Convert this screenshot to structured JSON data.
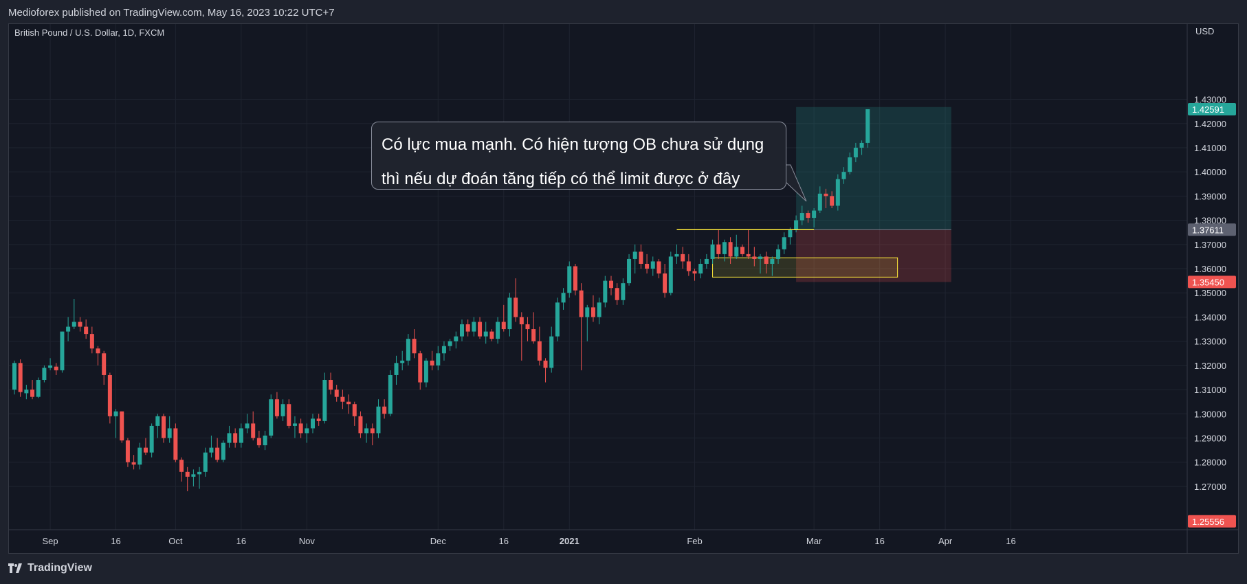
{
  "header": {
    "publish_info": "Medioforex published on TradingView.com, May 16, 2023 10:22 UTC+7"
  },
  "footer": {
    "brand": "TradingView"
  },
  "colors": {
    "up": "#26a69a",
    "down": "#ef5350",
    "background": "#131722",
    "grid": "#1f2430",
    "text": "#d1d4dc",
    "level_line": "#ffeb3b",
    "ob_box": "#ffeb3b",
    "profit_zone": "#26a69a",
    "loss_zone": "#ef5350"
  },
  "annotation": {
    "line1": "Có lực mua mạnh. Có hiện tượng OB chưa sử dụng",
    "line2": "thì nếu dự đoán tăng tiếp có thể limit được ở đây"
  },
  "chart_data": {
    "type": "candlestick",
    "title": "British Pound / U.S. Dollar, 1D, FXCM",
    "symbol": "GBPUSD",
    "timeframe": "1D",
    "exchange": "FXCM",
    "currency_label": "USD",
    "ylim": [
      1.2555,
      1.4435
    ],
    "y_ticks": [
      1.27,
      1.28,
      1.29,
      1.3,
      1.31,
      1.32,
      1.33,
      1.34,
      1.35,
      1.36,
      1.37,
      1.38,
      1.39,
      1.4,
      1.41,
      1.42,
      1.43
    ],
    "x_ticks": [
      {
        "label": "Sep",
        "bold": false
      },
      {
        "label": "16",
        "bold": false
      },
      {
        "label": "Oct",
        "bold": false
      },
      {
        "label": "16",
        "bold": false
      },
      {
        "label": "Nov",
        "bold": false
      },
      {
        "label": "Dec",
        "bold": false
      },
      {
        "label": "16",
        "bold": false
      },
      {
        "label": "2021",
        "bold": true
      },
      {
        "label": "Feb",
        "bold": false
      },
      {
        "label": "Mar",
        "bold": false
      },
      {
        "label": "16",
        "bold": false
      },
      {
        "label": "Apr",
        "bold": false
      },
      {
        "label": "16",
        "bold": false
      }
    ],
    "x_tick_bar_index": [
      6,
      17,
      27,
      38,
      49,
      71,
      82,
      93,
      114,
      134,
      145,
      156,
      167
    ],
    "price_labels": [
      {
        "value": "1.42591",
        "color": "#26a69a"
      },
      {
        "value": "1.37611",
        "color": "#5d6170"
      },
      {
        "value": "1.35450",
        "color": "#ef5350"
      },
      {
        "value": "1.25556",
        "color": "#ef5350"
      }
    ],
    "levels": {
      "current": 1.42591,
      "entry": 1.37611,
      "stop": 1.3545,
      "low": 1.25556
    },
    "position_tool": {
      "start_bar": 131,
      "end_bar": 157,
      "target": 1.4268,
      "entry": 1.37611,
      "stop": 1.3545
    },
    "entry_line": {
      "start_bar": 111,
      "end_bar": 134,
      "price": 1.37611
    },
    "order_block": {
      "start_bar": 117,
      "end_bar": 148,
      "top": 1.3645,
      "bottom": 1.3565
    },
    "candles": [
      [
        1.31,
        1.322,
        1.308,
        1.321
      ],
      [
        1.321,
        1.3225,
        1.307,
        1.309
      ],
      [
        1.3085,
        1.312,
        1.306,
        1.31
      ],
      [
        1.31,
        1.314,
        1.306,
        1.307
      ],
      [
        1.307,
        1.315,
        1.3065,
        1.314
      ],
      [
        1.314,
        1.32,
        1.313,
        1.319
      ],
      [
        1.319,
        1.323,
        1.318,
        1.32
      ],
      [
        1.3195,
        1.321,
        1.316,
        1.318
      ],
      [
        1.318,
        1.334,
        1.317,
        1.334
      ],
      [
        1.334,
        1.34,
        1.33,
        1.336
      ],
      [
        1.336,
        1.3475,
        1.335,
        1.338
      ],
      [
        1.338,
        1.34,
        1.334,
        1.336
      ],
      [
        1.336,
        1.339,
        1.331,
        1.333
      ],
      [
        1.333,
        1.336,
        1.325,
        1.327
      ],
      [
        1.327,
        1.328,
        1.32,
        1.325
      ],
      [
        1.325,
        1.326,
        1.312,
        1.316
      ],
      [
        1.316,
        1.317,
        1.296,
        1.299
      ],
      [
        1.299,
        1.302,
        1.29,
        1.301
      ],
      [
        1.301,
        1.301,
        1.288,
        1.289
      ],
      [
        1.289,
        1.29,
        1.278,
        1.28
      ],
      [
        1.28,
        1.283,
        1.277,
        1.279
      ],
      [
        1.279,
        1.288,
        1.277,
        1.286
      ],
      [
        1.286,
        1.29,
        1.283,
        1.284
      ],
      [
        1.284,
        1.296,
        1.282,
        1.295
      ],
      [
        1.295,
        1.3,
        1.29,
        1.299
      ],
      [
        1.299,
        1.3,
        1.288,
        1.29
      ],
      [
        1.29,
        1.299,
        1.288,
        1.294
      ],
      [
        1.294,
        1.296,
        1.28,
        1.281
      ],
      [
        1.281,
        1.282,
        1.272,
        1.276
      ],
      [
        1.276,
        1.278,
        1.268,
        1.274
      ],
      [
        1.274,
        1.277,
        1.27,
        1.275
      ],
      [
        1.275,
        1.278,
        1.269,
        1.276
      ],
      [
        1.276,
        1.286,
        1.274,
        1.284
      ],
      [
        1.284,
        1.291,
        1.282,
        1.286
      ],
      [
        1.286,
        1.29,
        1.28,
        1.281
      ],
      [
        1.281,
        1.289,
        1.28,
        1.288
      ],
      [
        1.288,
        1.295,
        1.286,
        1.292
      ],
      [
        1.292,
        1.294,
        1.286,
        1.288
      ],
      [
        1.288,
        1.296,
        1.286,
        1.294
      ],
      [
        1.294,
        1.3,
        1.292,
        1.296
      ],
      [
        1.296,
        1.301,
        1.289,
        1.29
      ],
      [
        1.29,
        1.293,
        1.286,
        1.287
      ],
      [
        1.287,
        1.293,
        1.285,
        1.291
      ],
      [
        1.291,
        1.308,
        1.29,
        1.306
      ],
      [
        1.306,
        1.309,
        1.298,
        1.299
      ],
      [
        1.299,
        1.306,
        1.297,
        1.304
      ],
      [
        1.304,
        1.306,
        1.294,
        1.295
      ],
      [
        1.295,
        1.299,
        1.29,
        1.296
      ],
      [
        1.296,
        1.298,
        1.29,
        1.292
      ],
      [
        1.292,
        1.296,
        1.288,
        1.294
      ],
      [
        1.294,
        1.3,
        1.292,
        1.298
      ],
      [
        1.298,
        1.3,
        1.295,
        1.297
      ],
      [
        1.297,
        1.317,
        1.296,
        1.314
      ],
      [
        1.314,
        1.317,
        1.308,
        1.31
      ],
      [
        1.31,
        1.312,
        1.305,
        1.307
      ],
      [
        1.307,
        1.31,
        1.302,
        1.305
      ],
      [
        1.305,
        1.308,
        1.3,
        1.304
      ],
      [
        1.304,
        1.305,
        1.295,
        1.299
      ],
      [
        1.299,
        1.301,
        1.29,
        1.292
      ],
      [
        1.292,
        1.296,
        1.288,
        1.294
      ],
      [
        1.294,
        1.296,
        1.287,
        1.292
      ],
      [
        1.292,
        1.306,
        1.29,
        1.303
      ],
      [
        1.303,
        1.306,
        1.298,
        1.3
      ],
      [
        1.3,
        1.318,
        1.299,
        1.316
      ],
      [
        1.316,
        1.324,
        1.312,
        1.321
      ],
      [
        1.321,
        1.326,
        1.318,
        1.322
      ],
      [
        1.322,
        1.333,
        1.32,
        1.331
      ],
      [
        1.331,
        1.335,
        1.323,
        1.325
      ],
      [
        1.325,
        1.326,
        1.31,
        1.313
      ],
      [
        1.313,
        1.323,
        1.311,
        1.322
      ],
      [
        1.322,
        1.326,
        1.318,
        1.32
      ],
      [
        1.32,
        1.328,
        1.318,
        1.325
      ],
      [
        1.325,
        1.33,
        1.322,
        1.328
      ],
      [
        1.328,
        1.331,
        1.326,
        1.33
      ],
      [
        1.33,
        1.334,
        1.327,
        1.332
      ],
      [
        1.332,
        1.339,
        1.33,
        1.337
      ],
      [
        1.337,
        1.339,
        1.332,
        1.334
      ],
      [
        1.334,
        1.34,
        1.332,
        1.338
      ],
      [
        1.338,
        1.34,
        1.331,
        1.332
      ],
      [
        1.332,
        1.338,
        1.329,
        1.334
      ],
      [
        1.334,
        1.335,
        1.33,
        1.331
      ],
      [
        1.331,
        1.34,
        1.329,
        1.338
      ],
      [
        1.338,
        1.345,
        1.334,
        1.335
      ],
      [
        1.335,
        1.35,
        1.332,
        1.348
      ],
      [
        1.348,
        1.356,
        1.338,
        1.34
      ],
      [
        1.34,
        1.342,
        1.322,
        1.337
      ],
      [
        1.337,
        1.34,
        1.33,
        1.335
      ],
      [
        1.335,
        1.342,
        1.329,
        1.33
      ],
      [
        1.33,
        1.336,
        1.32,
        1.322
      ],
      [
        1.322,
        1.323,
        1.313,
        1.319
      ],
      [
        1.319,
        1.336,
        1.317,
        1.332
      ],
      [
        1.332,
        1.348,
        1.33,
        1.346
      ],
      [
        1.346,
        1.352,
        1.343,
        1.35
      ],
      [
        1.35,
        1.363,
        1.348,
        1.361
      ],
      [
        1.361,
        1.362,
        1.349,
        1.351
      ],
      [
        1.351,
        1.354,
        1.318,
        1.34
      ],
      [
        1.34,
        1.345,
        1.33,
        1.344
      ],
      [
        1.344,
        1.349,
        1.338,
        1.34
      ],
      [
        1.34,
        1.348,
        1.337,
        1.346
      ],
      [
        1.346,
        1.357,
        1.344,
        1.355
      ],
      [
        1.355,
        1.357,
        1.349,
        1.352
      ],
      [
        1.352,
        1.354,
        1.345,
        1.347
      ],
      [
        1.347,
        1.356,
        1.345,
        1.354
      ],
      [
        1.354,
        1.366,
        1.353,
        1.364
      ],
      [
        1.364,
        1.37,
        1.358,
        1.367
      ],
      [
        1.367,
        1.37,
        1.36,
        1.362
      ],
      [
        1.362,
        1.366,
        1.358,
        1.36
      ],
      [
        1.36,
        1.365,
        1.357,
        1.363
      ],
      [
        1.363,
        1.364,
        1.356,
        1.358
      ],
      [
        1.358,
        1.362,
        1.348,
        1.35
      ],
      [
        1.35,
        1.367,
        1.349,
        1.365
      ],
      [
        1.365,
        1.37,
        1.362,
        1.366
      ],
      [
        1.366,
        1.369,
        1.36,
        1.363
      ],
      [
        1.363,
        1.366,
        1.357,
        1.359
      ],
      [
        1.359,
        1.36,
        1.355,
        1.358
      ],
      [
        1.358,
        1.364,
        1.356,
        1.362
      ],
      [
        1.362,
        1.366,
        1.36,
        1.364
      ],
      [
        1.364,
        1.372,
        1.362,
        1.37
      ],
      [
        1.37,
        1.376,
        1.364,
        1.366
      ],
      [
        1.366,
        1.372,
        1.363,
        1.371
      ],
      [
        1.371,
        1.373,
        1.362,
        1.365
      ],
      [
        1.365,
        1.374,
        1.364,
        1.369
      ],
      [
        1.369,
        1.37,
        1.365,
        1.366
      ],
      [
        1.366,
        1.376,
        1.364,
        1.365
      ],
      [
        1.365,
        1.369,
        1.361,
        1.364
      ],
      [
        1.364,
        1.366,
        1.358,
        1.365
      ],
      [
        1.365,
        1.367,
        1.358,
        1.362
      ],
      [
        1.362,
        1.365,
        1.357,
        1.364
      ],
      [
        1.364,
        1.37,
        1.362,
        1.368
      ],
      [
        1.368,
        1.375,
        1.366,
        1.373
      ],
      [
        1.373,
        1.377,
        1.37,
        1.3761
      ],
      [
        1.3761,
        1.382,
        1.375,
        1.38
      ],
      [
        1.38,
        1.386,
        1.378,
        1.383
      ],
      [
        1.383,
        1.384,
        1.379,
        1.381
      ],
      [
        1.381,
        1.385,
        1.377,
        1.384
      ],
      [
        1.384,
        1.394,
        1.383,
        1.391
      ],
      [
        1.391,
        1.393,
        1.385,
        1.39
      ],
      [
        1.39,
        1.392,
        1.385,
        1.386
      ],
      [
        1.386,
        1.399,
        1.384,
        1.397
      ],
      [
        1.397,
        1.402,
        1.395,
        1.4
      ],
      [
        1.4,
        1.408,
        1.399,
        1.406
      ],
      [
        1.406,
        1.412,
        1.404,
        1.41
      ],
      [
        1.41,
        1.413,
        1.407,
        1.412
      ],
      [
        1.412,
        1.425,
        1.41,
        1.4259
      ]
    ]
  }
}
